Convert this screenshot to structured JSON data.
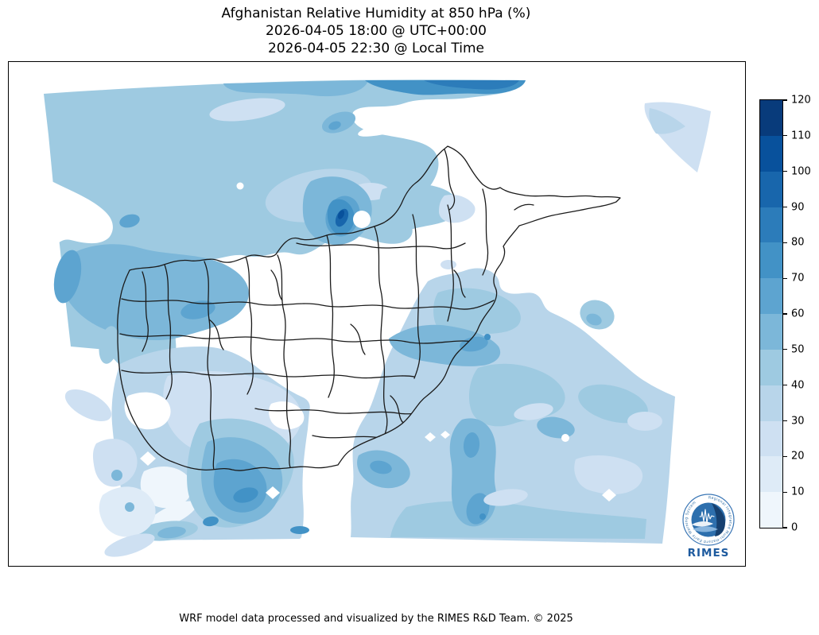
{
  "figure": {
    "title_line1": "Afghanistan Relative Humidity at 850 hPa (%)",
    "title_line2": "2026-04-05 18:00 @ UTC+00:00",
    "title_line3": "2026-04-05 22:30 @ Local Time",
    "footer_credit": "WRF model data processed and visualized by the RIMES R&D Team. © 2025"
  },
  "colorbar": {
    "min": 0,
    "max": 120,
    "tick_step": 10,
    "ticks": [
      "0",
      "10",
      "20",
      "30",
      "40",
      "50",
      "60",
      "70",
      "80",
      "90",
      "100",
      "110",
      "120"
    ],
    "segments": [
      {
        "range": "0-10",
        "color": "#eff6fc"
      },
      {
        "range": "10-20",
        "color": "#deebf7"
      },
      {
        "range": "20-30",
        "color": "#cee0f2"
      },
      {
        "range": "30-40",
        "color": "#b8d5ea"
      },
      {
        "range": "40-50",
        "color": "#9ecae1"
      },
      {
        "range": "50-60",
        "color": "#7cb7d9"
      },
      {
        "range": "60-70",
        "color": "#5da4d0"
      },
      {
        "range": "70-80",
        "color": "#4292c6"
      },
      {
        "range": "80-90",
        "color": "#2c7cba"
      },
      {
        "range": "90-100",
        "color": "#1866ac"
      },
      {
        "range": "100-110",
        "color": "#08519c"
      },
      {
        "range": "110-120",
        "color": "#083b7b"
      }
    ],
    "outline_color": "#000000"
  },
  "map": {
    "boundary_color": "#1a1a1a",
    "no_data_color": "#ffffff"
  },
  "logo": {
    "label": "RIMES",
    "ring_text": "Regional Integrated Multi-Hazard Early Warning System",
    "primary_color": "#1d5a9e"
  },
  "chart_data": {
    "type": "heatmap",
    "title": "Afghanistan Relative Humidity at 850 hPa (%)",
    "time_utc": "2026-04-05 18:00 @ UTC+00:00",
    "time_local": "2026-04-05 22:30 @ Local Time",
    "units": "%",
    "levels": [
      0,
      10,
      20,
      30,
      40,
      50,
      60,
      70,
      80,
      90,
      100,
      110,
      120
    ],
    "palette": [
      "#eff6fc",
      "#deebf7",
      "#cee0f2",
      "#b8d5ea",
      "#9ecae1",
      "#7cb7d9",
      "#5da4d0",
      "#4292c6",
      "#2c7cba",
      "#1866ac",
      "#08519c",
      "#083b7b"
    ],
    "legend_position": "right",
    "field_summary": "Filled contour field: humid (blue, 40-100%) northwest, west, south and east of the model domain; dry (white, <20%) across central Afghanistan; maximum dark-blue core (~90-110%) in north-central Afghanistan; overlaid black district boundaries."
  }
}
